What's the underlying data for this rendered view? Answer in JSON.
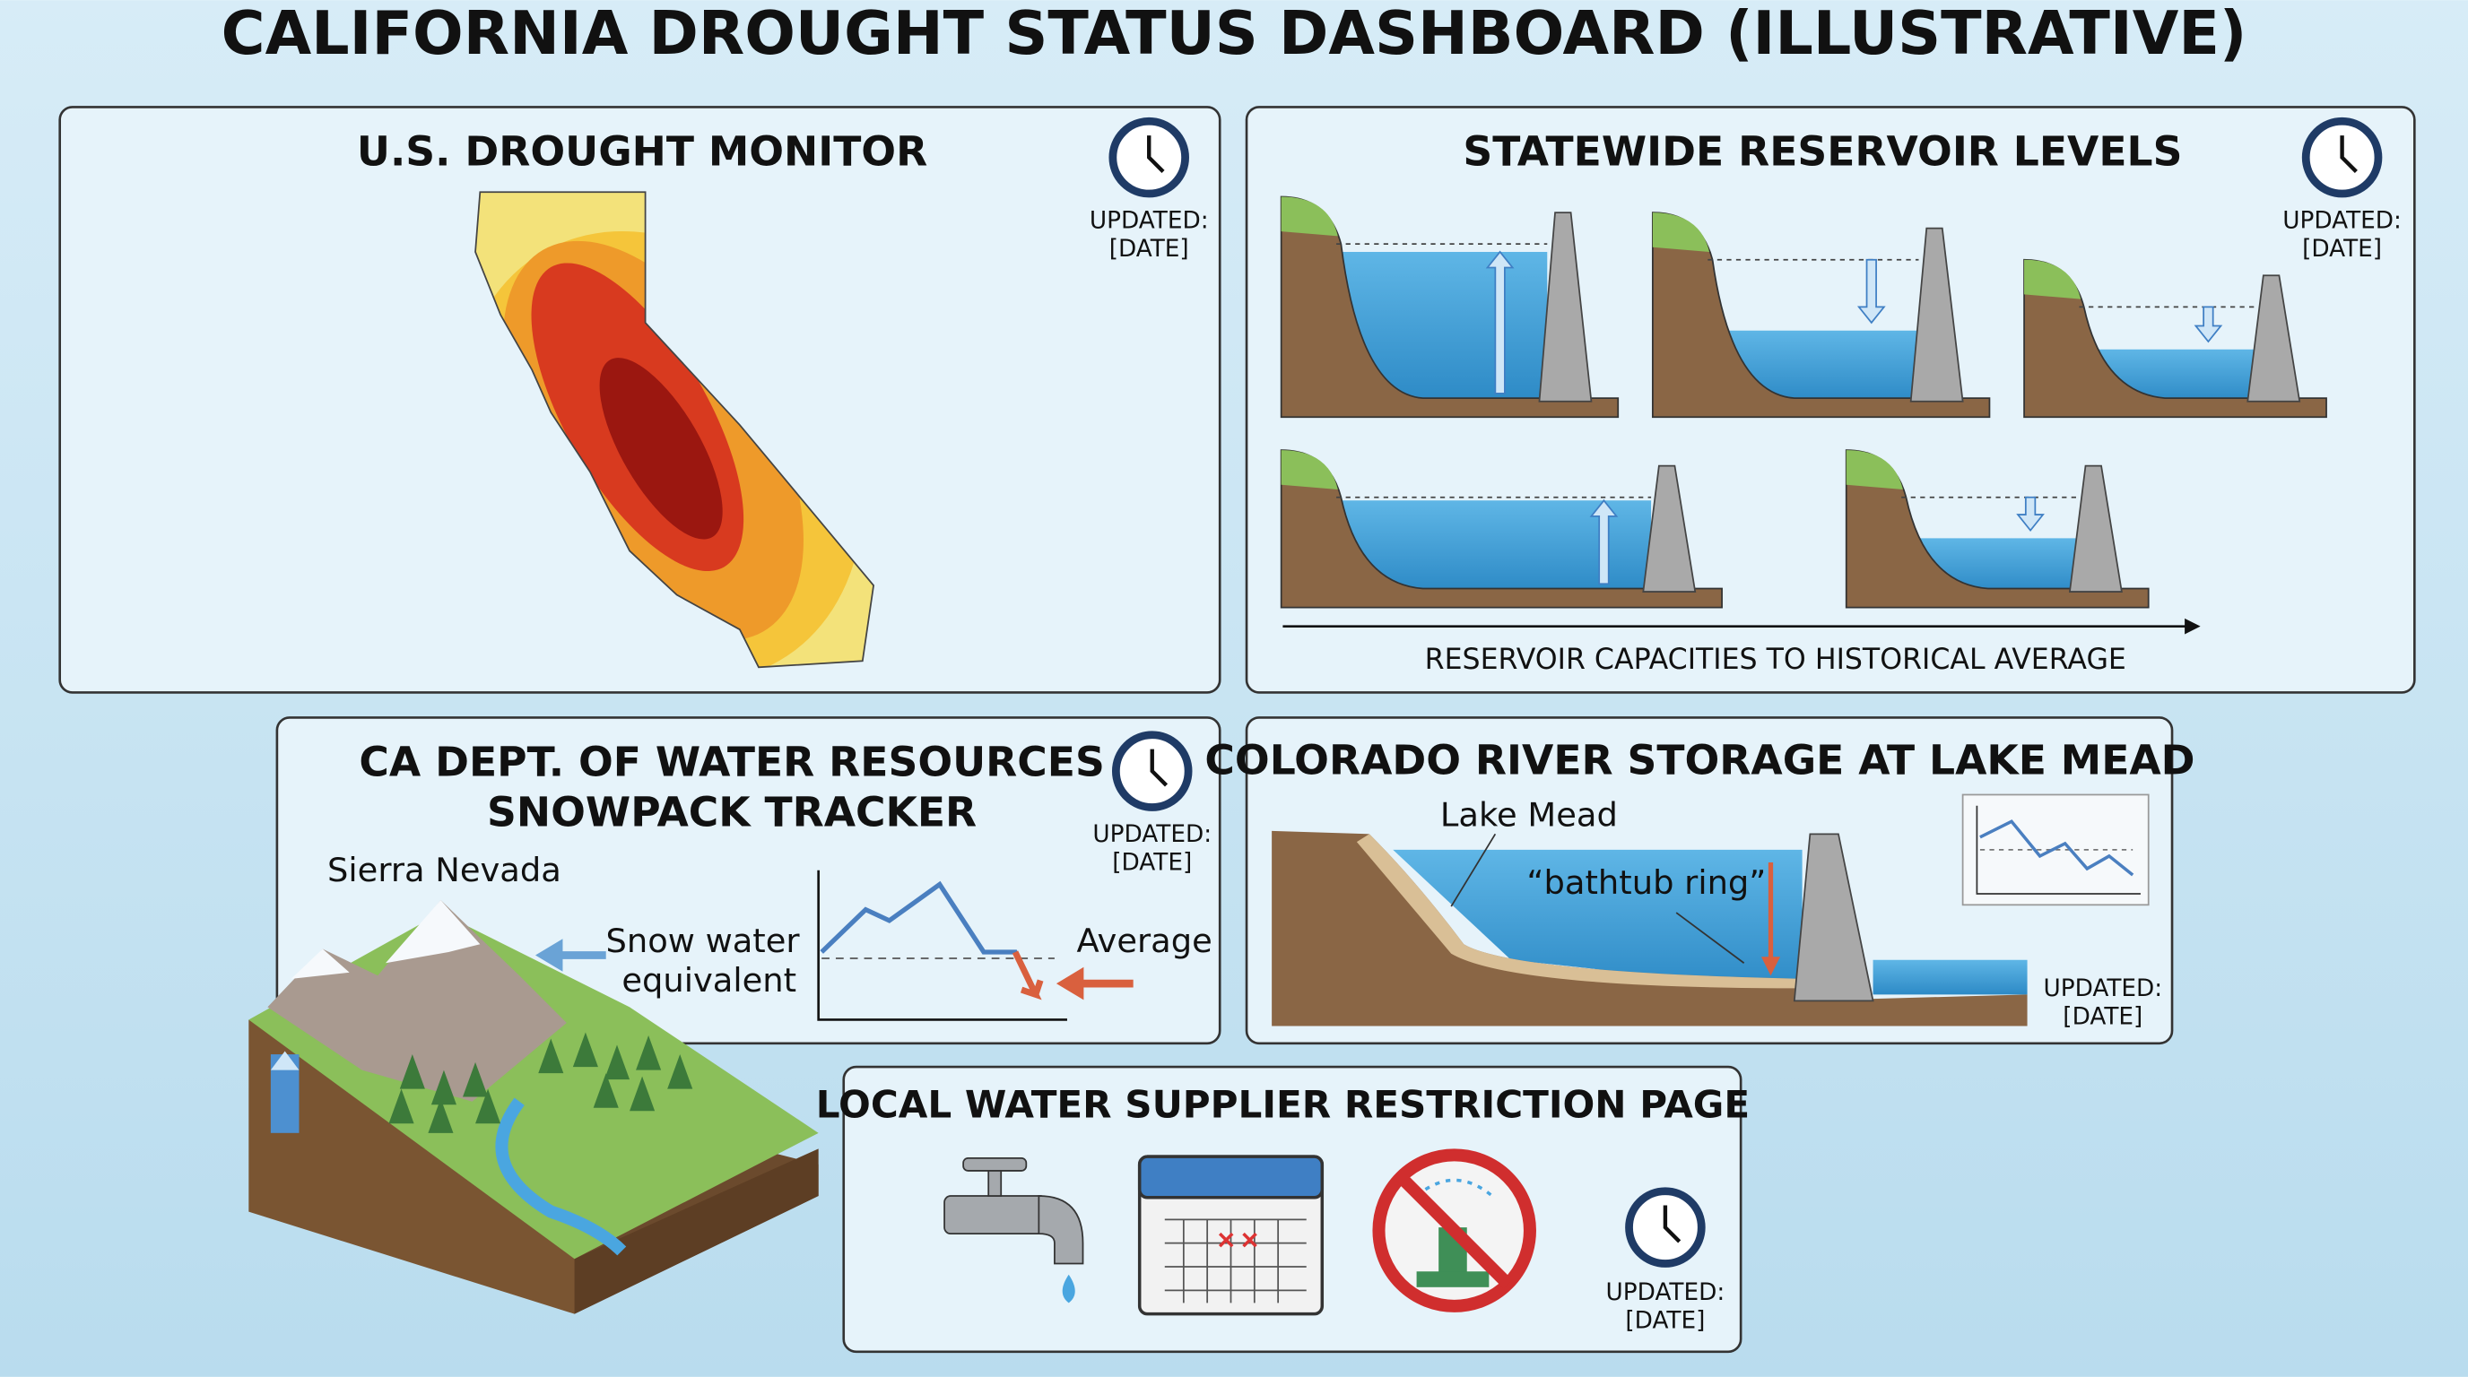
{
  "title": "CALIFORNIA DROUGHT STATUS DASHBOARD (ILLUSTRATIVE)",
  "panels": [
    {
      "title": "U.S. DROUGHT MONITOR",
      "updated": "UPDATED:",
      "date": "[DATE]"
    },
    {
      "title": "STATEWIDE RESERVOIR LEVELS",
      "updated": "UPDATED:",
      "date": "[DATE]",
      "caption": "RESERVOIR CAPACITIES TO HISTORICAL AVERAGE"
    },
    {
      "title": [
        "CA DEPT. OF WATER RESOURCES",
        "SNOWPACK TRACKER"
      ],
      "updated": "UPDATED:",
      "date": "[DATE]",
      "labels": [
        "Sierra Nevada",
        "Snow water",
        "equivalent",
        "Average"
      ]
    },
    {
      "title": "COLORADO RIVER STORAGE AT LAKE MEAD",
      "updated": "UPDATED:",
      "date": "[DATE]",
      "labels": [
        "Lake Mead",
        "“bathtub ring”"
      ]
    },
    {
      "title": "LOCAL WATER SUPPLIER RESTRICTION PAGE",
      "updated": "UPDATED:",
      "date": "[DATE]"
    }
  ]
}
